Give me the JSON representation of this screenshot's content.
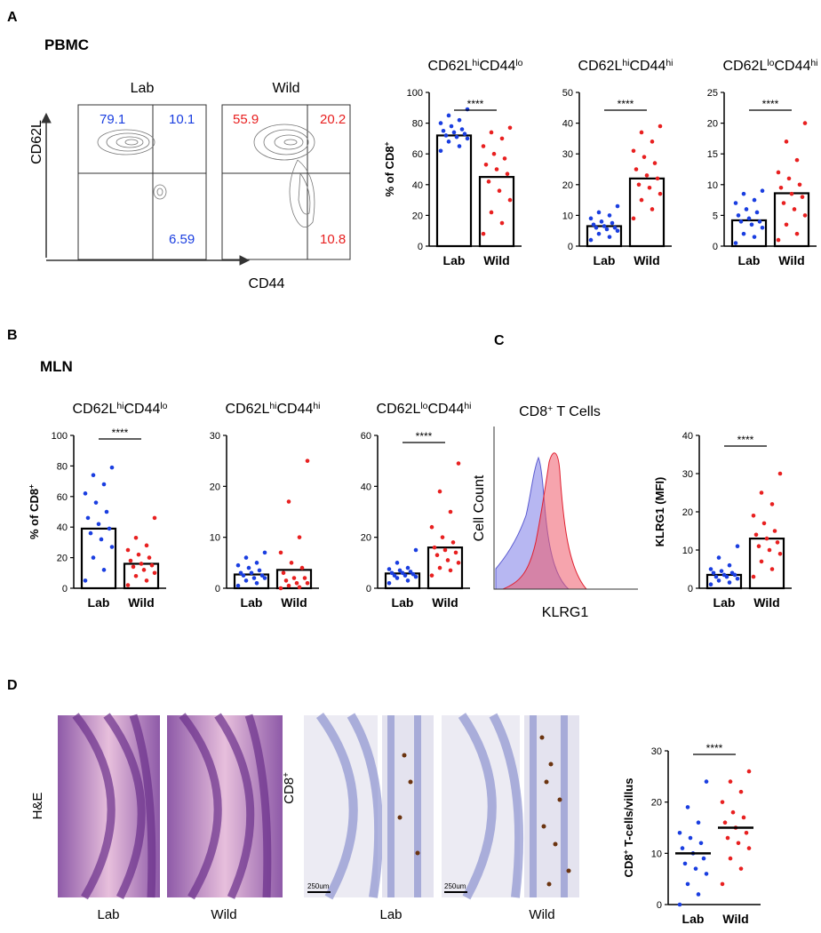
{
  "panel_labels": [
    "A",
    "B",
    "C",
    "D"
  ],
  "panel_A": {
    "tissue": "PBMC",
    "flow": {
      "ylabel": "CD62L",
      "xlabel": "CD44",
      "plots": [
        {
          "title": "Lab",
          "quadrants": [
            79.1,
            10.1,
            6.59
          ]
        },
        {
          "title": "Wild",
          "quadrants": [
            55.9,
            20.2,
            10.8
          ]
        }
      ]
    }
  },
  "panel_B": {
    "tissue": "MLN"
  },
  "panel_C": {
    "histogram": {
      "title": [
        "CD8",
        "+",
        " T Cells"
      ],
      "ylabel": "Cell Count",
      "xlabel": "KLRG1"
    }
  },
  "panel_D": {
    "he_label": "H&E",
    "cd8_label": [
      "CD8",
      "+"
    ],
    "image_labels": [
      "Lab",
      "Wild",
      "Lab",
      "Wild"
    ],
    "scale_bars": [
      "250um",
      "250um"
    ]
  },
  "chart_data": [
    {
      "type": "bar",
      "title": [
        "CD62L",
        "hi",
        "CD44",
        "lo"
      ],
      "ylabel": [
        "% of CD8",
        "+"
      ],
      "categories": [
        "Lab",
        "Wild"
      ],
      "values": [
        72,
        45
      ],
      "points": [
        [
          62,
          65,
          68,
          70,
          71,
          72,
          73,
          74,
          75,
          76,
          78,
          80,
          82,
          85,
          89
        ],
        [
          8,
          15,
          22,
          30,
          36,
          42,
          47,
          50,
          53,
          57,
          60,
          65,
          70,
          74,
          77
        ]
      ],
      "colors": [
        "#1a3ee0",
        "#e82020"
      ],
      "ylim": [
        0,
        100
      ],
      "yticks": [
        0,
        20,
        40,
        60,
        80,
        100
      ],
      "annotation": "****"
    },
    {
      "type": "bar",
      "title": [
        "CD62L",
        "hi",
        "CD44",
        "hi"
      ],
      "categories": [
        "Lab",
        "Wild"
      ],
      "values": [
        6.5,
        22
      ],
      "points": [
        [
          2,
          3,
          4,
          5,
          5.5,
          6,
          6,
          6.5,
          7,
          7.5,
          8,
          9,
          10,
          11,
          13
        ],
        [
          9,
          12,
          15,
          17,
          19,
          20,
          22,
          23,
          25,
          27,
          29,
          31,
          34,
          37,
          39
        ]
      ],
      "colors": [
        "#1a3ee0",
        "#e82020"
      ],
      "ylim": [
        0,
        50
      ],
      "yticks": [
        0,
        10,
        20,
        30,
        40,
        50
      ],
      "annotation": "****"
    },
    {
      "type": "bar",
      "title": [
        "CD62L",
        "lo",
        "CD44",
        "hi"
      ],
      "categories": [
        "Lab",
        "Wild"
      ],
      "values": [
        4.2,
        8.6
      ],
      "points": [
        [
          0.5,
          1.5,
          2,
          3,
          3.5,
          4,
          4,
          4.5,
          5,
          5.5,
          6,
          7,
          7.5,
          8.5,
          9
        ],
        [
          1,
          2,
          3.5,
          5,
          6,
          7,
          8,
          8.5,
          9.5,
          10,
          11,
          12,
          14,
          17,
          20
        ]
      ],
      "colors": [
        "#1a3ee0",
        "#e82020"
      ],
      "ylim": [
        0,
        25
      ],
      "yticks": [
        0,
        5,
        10,
        15,
        20,
        25
      ],
      "annotation": "****"
    },
    {
      "type": "bar",
      "title": [
        "CD62L",
        "hi",
        "CD44",
        "lo"
      ],
      "ylabel": [
        "% of CD8",
        "+"
      ],
      "categories": [
        "Lab",
        "Wild"
      ],
      "values": [
        39,
        16
      ],
      "points": [
        [
          5,
          12,
          20,
          27,
          32,
          36,
          39,
          42,
          46,
          50,
          56,
          62,
          68,
          74,
          79
        ],
        [
          2,
          5,
          8,
          10,
          12,
          14,
          15,
          16,
          18,
          20,
          22,
          25,
          28,
          33,
          46
        ]
      ],
      "colors": [
        "#1a3ee0",
        "#e82020"
      ],
      "ylim": [
        0,
        100
      ],
      "yticks": [
        0,
        20,
        40,
        60,
        80,
        100
      ],
      "annotation": "****"
    },
    {
      "type": "bar",
      "title": [
        "CD62L",
        "hi",
        "CD44",
        "hi"
      ],
      "categories": [
        "Lab",
        "Wild"
      ],
      "values": [
        2.7,
        3.6
      ],
      "points": [
        [
          0.5,
          1,
          1.5,
          2,
          2,
          2.5,
          2.5,
          3,
          3,
          3.5,
          4,
          4.5,
          5,
          6,
          7
        ],
        [
          0,
          0.2,
          0.5,
          1,
          1,
          1.5,
          2,
          2,
          3,
          4,
          5,
          7,
          10,
          17,
          25
        ]
      ],
      "colors": [
        "#1a3ee0",
        "#e82020"
      ],
      "ylim": [
        0,
        30
      ],
      "yticks": [
        0,
        10,
        20,
        30
      ]
    },
    {
      "type": "bar",
      "title": [
        "CD62L",
        "lo",
        "CD44",
        "hi"
      ],
      "categories": [
        "Lab",
        "Wild"
      ],
      "values": [
        5.8,
        16
      ],
      "points": [
        [
          2,
          3,
          4,
          4.5,
          5,
          5,
          5.5,
          6,
          6,
          6.5,
          7,
          7.5,
          8,
          10,
          15
        ],
        [
          5,
          7,
          8,
          10,
          11,
          13,
          14,
          15,
          16,
          18,
          20,
          24,
          30,
          38,
          49
        ]
      ],
      "colors": [
        "#1a3ee0",
        "#e82020"
      ],
      "ylim": [
        0,
        60
      ],
      "yticks": [
        0,
        20,
        40,
        60
      ],
      "annotation": "****"
    },
    {
      "type": "bar",
      "ylabel": [
        "KLRG1 (MFI)"
      ],
      "categories": [
        "Lab",
        "Wild"
      ],
      "values": [
        3.5,
        13
      ],
      "points": [
        [
          1,
          1.5,
          2,
          2.5,
          3,
          3,
          3.5,
          3.5,
          4,
          4,
          4.5,
          5,
          6,
          8,
          11
        ],
        [
          3,
          5,
          7,
          9,
          10,
          11,
          12,
          13,
          14,
          15,
          17,
          19,
          22,
          25,
          30
        ]
      ],
      "colors": [
        "#1a3ee0",
        "#e82020"
      ],
      "ylim": [
        0,
        40
      ],
      "yticks": [
        0,
        10,
        20,
        30,
        40
      ],
      "annotation": "****"
    },
    {
      "type": "dot_mean",
      "ylabel": [
        "CD8",
        "+",
        " T-cells/villus"
      ],
      "categories": [
        "Lab",
        "Wild"
      ],
      "values": [
        10,
        15
      ],
      "points": [
        [
          0,
          2,
          4,
          6,
          7,
          8,
          9,
          10,
          11,
          12,
          13,
          14,
          16,
          19,
          24
        ],
        [
          4,
          7,
          9,
          11,
          12,
          13,
          14,
          15,
          16,
          17,
          18,
          20,
          22,
          24,
          26
        ]
      ],
      "colors": [
        "#1a3ee0",
        "#e82020"
      ],
      "ylim": [
        0,
        30
      ],
      "yticks": [
        0,
        10,
        20,
        30
      ],
      "annotation": "****"
    }
  ]
}
